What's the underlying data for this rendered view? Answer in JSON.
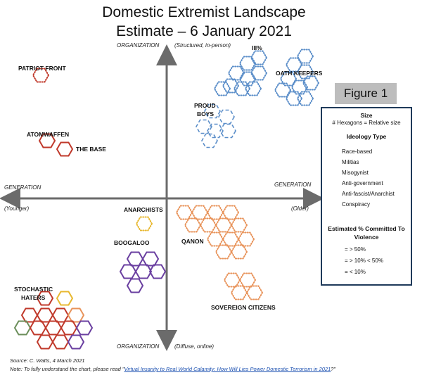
{
  "title": {
    "line1": "Domestic Extremist Landscape",
    "line2": "Estimate – 6 January 2021"
  },
  "figure_badge": "Figure 1",
  "axes": {
    "top_label": "ORGANIZATION",
    "top_sub": "(Structured, in-person)",
    "bottom_label": "ORGANIZATION",
    "bottom_sub": "(Diffuse, online)",
    "left_label": "GENERATION",
    "left_sub": "(Younger)",
    "right_label": "GENERATION",
    "right_sub": "(Older)"
  },
  "groups": {
    "patriot_front": "PATRIOT FRONT",
    "atomwaffen": "ATOMWAFFEN",
    "the_base": "THE BASE",
    "three_percent": "III%",
    "oath_keepers": "OATH KEEPERS",
    "proud_boys_1": "PROUD",
    "proud_boys_2": "BOYS",
    "anarchists": "ANARCHISTS",
    "boogaloo": "BOOGALOO",
    "qanon": "QANON",
    "stochastic_1": "STOCHASTIC",
    "stochastic_2": "HATERS",
    "sovereign": "SOVEREIGN CITIZENS"
  },
  "legend": {
    "size_title": "Size",
    "size_text": "# Hexagons = Relative size",
    "ideology_title": "Ideology Type",
    "ideologies": [
      {
        "label": "Race-based",
        "color": "#c0392b"
      },
      {
        "label": "Militias",
        "color": "#5b8ec9"
      },
      {
        "label": "Misogynist",
        "color": "#6b8e5a"
      },
      {
        "label": "Anti-government",
        "color": "#6a3fa0"
      },
      {
        "label": "Anti-fascist/Anarchist",
        "color": "#e8b830"
      },
      {
        "label": "Conspiracy",
        "color": "#e8935a"
      }
    ],
    "violence_title_1": "Estimated % Committed To",
    "violence_title_2": "Violence",
    "violence_levels": [
      "= > 50%",
      "= > 10% < 50%",
      "= < 10%"
    ]
  },
  "footer": {
    "source": "Source: C. Watts, 4 March 2021",
    "note_prefix": "Note: To fully understand the chart, please read \"",
    "note_link": "Virtual Insanity to Real World Calamity: How Will Lies Power Domestic Terrorism in 2021",
    "note_suffix": "?\""
  }
}
